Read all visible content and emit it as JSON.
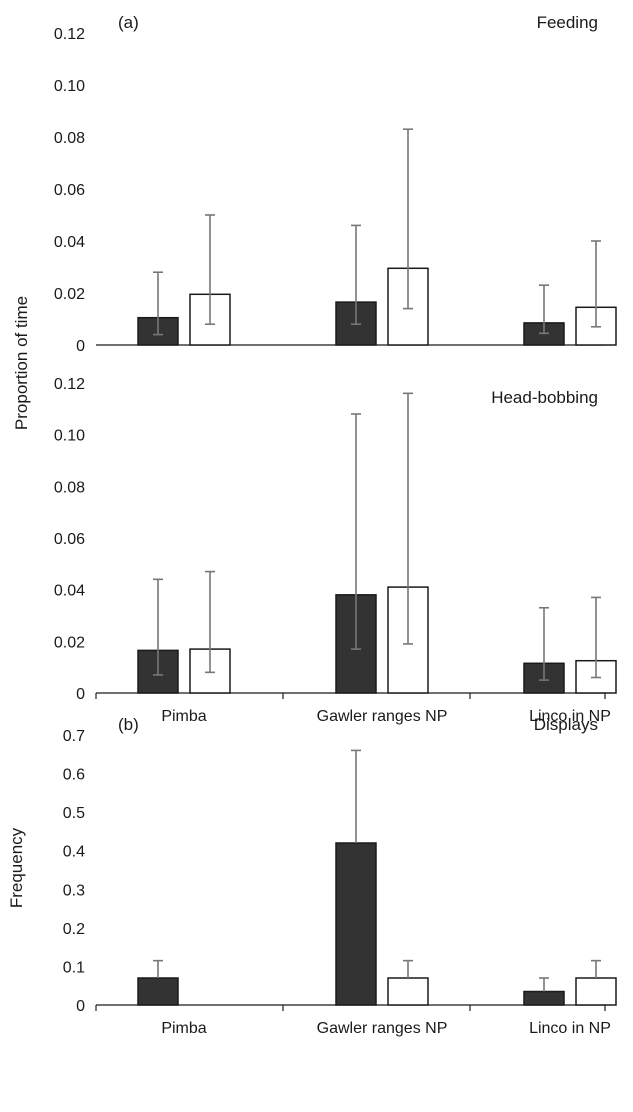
{
  "chart_data": [
    {
      "type": "bar",
      "panel_label": "(a)",
      "title": "Feeding",
      "ylabel": "Proportion of time",
      "ylim": [
        0,
        0.12
      ],
      "yticks": [
        "0",
        "0.02",
        "0.04",
        "0.06",
        "0.08",
        "0.10",
        "0.12"
      ],
      "categories": [
        "Pimba",
        "Gawler ranges NP",
        "Linco in NP"
      ],
      "show_category_labels": false,
      "series": [
        {
          "fill": "#333333",
          "values": [
            0.0105,
            0.0165,
            0.0085
          ],
          "err_low": [
            0.004,
            0.008,
            0.0045
          ],
          "err_high": [
            0.028,
            0.046,
            0.023
          ]
        },
        {
          "fill": "#ffffff",
          "values": [
            0.0195,
            0.0295,
            0.0145
          ],
          "err_low": [
            0.008,
            0.014,
            0.007
          ],
          "err_high": [
            0.05,
            0.083,
            0.04
          ]
        }
      ]
    },
    {
      "type": "bar",
      "title": "Head-bobbing",
      "ylabel": "Proportion of time",
      "ylim": [
        0,
        0.12
      ],
      "yticks": [
        "0",
        "0.02",
        "0.04",
        "0.06",
        "0.08",
        "0.10",
        "0.12"
      ],
      "categories": [
        "Pimba",
        "Gawler ranges NP",
        "Linco in NP"
      ],
      "show_category_labels": true,
      "series": [
        {
          "fill": "#333333",
          "values": [
            0.0165,
            0.038,
            0.0115
          ],
          "err_low": [
            0.007,
            0.017,
            0.005
          ],
          "err_high": [
            0.044,
            0.108,
            0.033
          ]
        },
        {
          "fill": "#ffffff",
          "values": [
            0.017,
            0.041,
            0.0125
          ],
          "err_low": [
            0.008,
            0.019,
            0.006
          ],
          "err_high": [
            0.047,
            0.116,
            0.037
          ]
        }
      ]
    },
    {
      "type": "bar",
      "panel_label": "(b)",
      "title": "Displays",
      "ylabel": "Frequency",
      "ylim": [
        0,
        0.7
      ],
      "yticks": [
        "0",
        "0.1",
        "0.2",
        "0.3",
        "0.4",
        "0.5",
        "0.6",
        "0.7"
      ],
      "categories": [
        "Pimba",
        "Gawler ranges NP",
        "Linco in NP"
      ],
      "show_category_labels": true,
      "series": [
        {
          "fill": "#333333",
          "values": [
            0.07,
            0.42,
            0.035
          ],
          "err_low": [
            0.07,
            0.42,
            0.035
          ],
          "err_high": [
            0.115,
            0.66,
            0.07
          ]
        },
        {
          "fill": "#ffffff",
          "values": [
            0,
            0.07,
            0.07
          ],
          "err_low": [
            0,
            0.07,
            0.07
          ],
          "err_high": [
            0,
            0.115,
            0.115
          ]
        }
      ]
    }
  ]
}
